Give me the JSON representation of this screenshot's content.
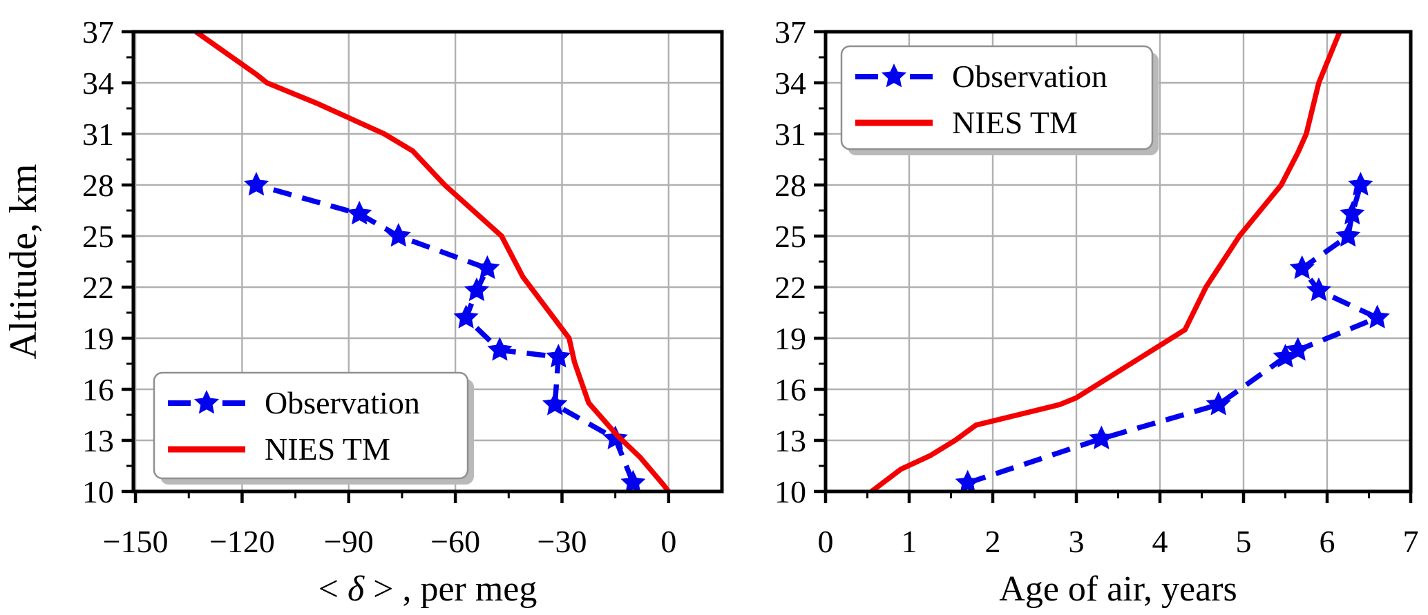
{
  "figure": {
    "background": "#ffffff",
    "blue": "#0202ee",
    "red": "#f40000",
    "grid_color": "#b0b0b0",
    "spine_color": "#000000",
    "legend_labels": [
      "Observation",
      "NIES TM"
    ]
  },
  "chart_data": [
    {
      "type": "line",
      "panel": "left",
      "title": "",
      "xlabel_parts": [
        "< ",
        "δ",
        " > , per meg"
      ],
      "ylabel": "Altitude, km",
      "xlim": [
        -150.6,
        15
      ],
      "ylim": [
        10,
        37
      ],
      "x_ticks": [
        -150,
        -120,
        -90,
        -60,
        -30,
        0
      ],
      "x_tick_labels": [
        "−150",
        "−120",
        "−90",
        "−60",
        "−30",
        "0"
      ],
      "x_minor_ticks": [
        -135,
        -105,
        -75,
        -45,
        -15
      ],
      "y_ticks": [
        10,
        13,
        16,
        19,
        22,
        25,
        28,
        31,
        34,
        37
      ],
      "y_tick_labels": [
        "10",
        "13",
        "16",
        "19",
        "22",
        "25",
        "28",
        "31",
        "34",
        "37"
      ],
      "y_minor_ticks": [
        11.5,
        14.5,
        17.5,
        20.5,
        23.5,
        26.5,
        29.5,
        32.5,
        35.5
      ],
      "grid": true,
      "legend_position": "lower-left",
      "series": [
        {
          "name": "Observation",
          "style": "dashed",
          "marker": "star",
          "color": "#0202ee",
          "points": [
            [
              -10,
              10.5
            ],
            [
              -15,
              13.1
            ],
            [
              -32,
              15.1
            ],
            [
              -31,
              17.9
            ],
            [
              -47.5,
              18.3
            ],
            [
              -57,
              20.2
            ],
            [
              -54,
              21.8
            ],
            [
              -51,
              23.1
            ],
            [
              -76,
              25.0
            ],
            [
              -87,
              26.3
            ],
            [
              -116,
              28.0
            ]
          ]
        },
        {
          "name": "NIES TM",
          "style": "solid",
          "marker": "none",
          "color": "#f40000",
          "points": [
            [
              0,
              10
            ],
            [
              -1.5,
              10.4
            ],
            [
              -8,
              12
            ],
            [
              -14.5,
              13.3
            ],
            [
              -22.5,
              15.2
            ],
            [
              -26.5,
              17.6
            ],
            [
              -28,
              19
            ],
            [
              -41,
              22.6
            ],
            [
              -47,
              25
            ],
            [
              -63,
              28
            ],
            [
              -72,
              30
            ],
            [
              -80,
              31
            ],
            [
              -99,
              32.8
            ],
            [
              -113,
              34
            ],
            [
              -116,
              34.5
            ],
            [
              -133,
              37
            ]
          ]
        }
      ]
    },
    {
      "type": "line",
      "panel": "right",
      "title": "",
      "xlabel_parts": [
        "Age of air, years"
      ],
      "ylabel": "",
      "xlim": [
        0,
        7
      ],
      "ylim": [
        10,
        37
      ],
      "x_ticks": [
        0,
        1,
        2,
        3,
        4,
        5,
        6,
        7
      ],
      "x_tick_labels": [
        "0",
        "1",
        "2",
        "3",
        "4",
        "5",
        "6",
        "7"
      ],
      "x_minor_ticks": [
        0.5,
        1.5,
        2.5,
        3.5,
        4.5,
        5.5,
        6.5
      ],
      "y_ticks": [
        10,
        13,
        16,
        19,
        22,
        25,
        28,
        31,
        34,
        37
      ],
      "y_tick_labels": [
        "10",
        "13",
        "16",
        "19",
        "22",
        "25",
        "28",
        "31",
        "34",
        "37"
      ],
      "y_minor_ticks": [
        11.5,
        14.5,
        17.5,
        20.5,
        23.5,
        26.5,
        29.5,
        32.5,
        35.5
      ],
      "grid": true,
      "legend_position": "upper-left",
      "series": [
        {
          "name": "Observation",
          "style": "dashed",
          "marker": "star",
          "color": "#0202ee",
          "points": [
            [
              1.7,
              10.5
            ],
            [
              3.3,
              13.1
            ],
            [
              4.7,
              15.1
            ],
            [
              5.5,
              17.9
            ],
            [
              5.65,
              18.3
            ],
            [
              6.6,
              20.2
            ],
            [
              5.9,
              21.8
            ],
            [
              5.7,
              23.1
            ],
            [
              6.25,
              25.0
            ],
            [
              6.3,
              26.3
            ],
            [
              6.4,
              28.0
            ]
          ]
        },
        {
          "name": "NIES TM",
          "style": "solid",
          "marker": "none",
          "color": "#f40000",
          "points": [
            [
              0.55,
              10
            ],
            [
              0.9,
              11.3
            ],
            [
              1.25,
              12.1
            ],
            [
              1.55,
              13.0
            ],
            [
              1.8,
              13.9
            ],
            [
              2.8,
              15.1
            ],
            [
              3.0,
              15.5
            ],
            [
              4.3,
              19.5
            ],
            [
              4.55,
              22.0
            ],
            [
              4.95,
              25.0
            ],
            [
              5.05,
              25.6
            ],
            [
              5.45,
              28.0
            ],
            [
              5.65,
              29.9
            ],
            [
              5.75,
              31.0
            ],
            [
              5.9,
              34.0
            ],
            [
              6.15,
              37.0
            ]
          ]
        }
      ]
    }
  ]
}
